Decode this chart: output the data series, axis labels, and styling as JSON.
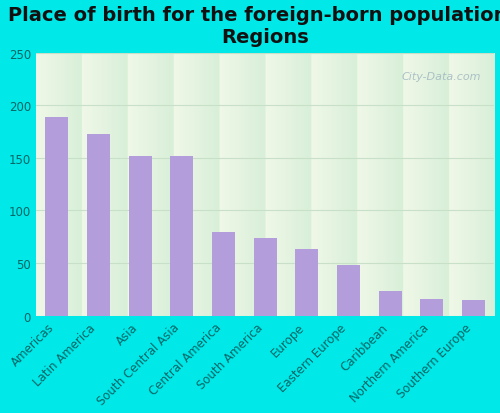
{
  "title": "Place of birth for the foreign-born population -\nRegions",
  "categories": [
    "Americas",
    "Latin America",
    "Asia",
    "South Central Asia",
    "Central America",
    "South America",
    "Europe",
    "Eastern Europe",
    "Caribbean",
    "Northern America",
    "Southern Europe"
  ],
  "values": [
    189,
    173,
    152,
    152,
    80,
    74,
    63,
    48,
    23,
    16,
    15
  ],
  "bar_color": "#b39ddb",
  "figure_bg": "#00e8e8",
  "plot_bg_top": "#f0f8e8",
  "plot_bg_bottom": "#d8efd8",
  "ylim": [
    0,
    250
  ],
  "yticks": [
    0,
    50,
    100,
    150,
    200,
    250
  ],
  "title_fontsize": 14,
  "tick_fontsize": 8.5,
  "xlabel_color": "#006666",
  "ylabel_color": "#006666",
  "watermark": "City-Data.com",
  "grid_color": "#c8e0c8",
  "bar_width": 0.55
}
